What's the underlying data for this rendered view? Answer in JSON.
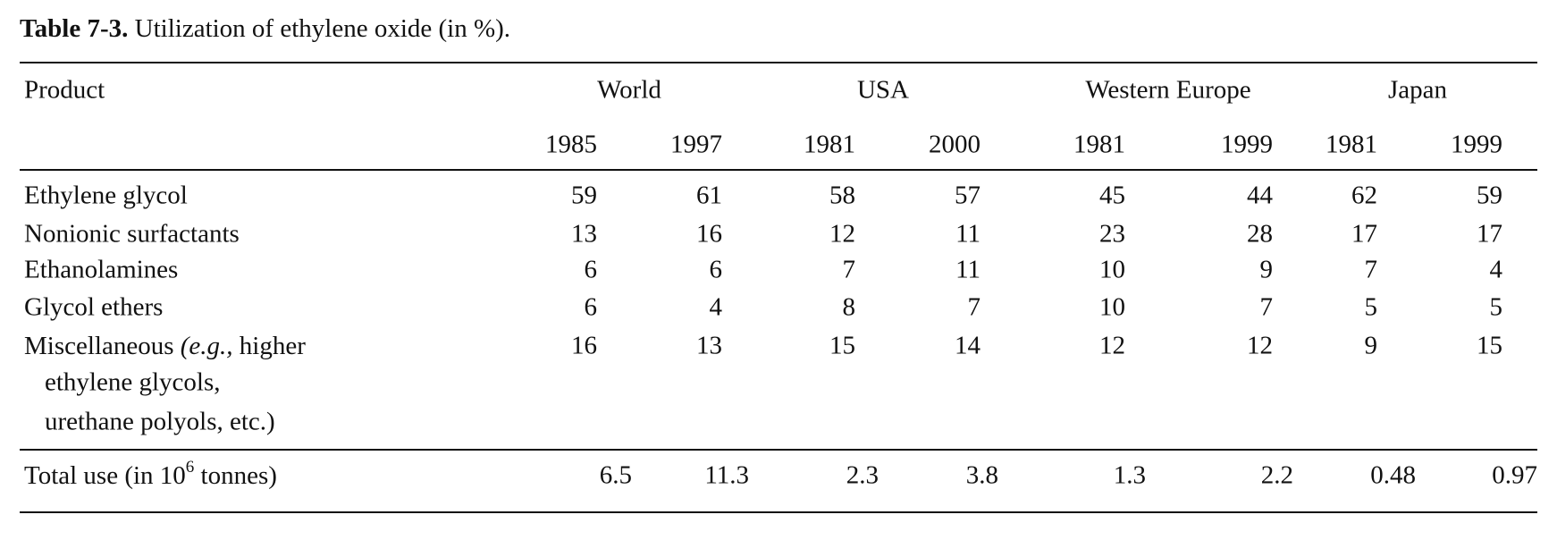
{
  "title": {
    "label": "Table 7-3.",
    "text": " Utilization of ethylene oxide (in %)."
  },
  "header": {
    "product": "Product",
    "groups": [
      "World",
      "USA",
      "Western Europe",
      "Japan"
    ],
    "years": [
      "1985",
      "1997",
      "1981",
      "2000",
      "1981",
      "1999",
      "1981",
      "1999"
    ]
  },
  "rows": [
    {
      "label": "Ethylene glycol",
      "values": [
        59,
        61,
        58,
        57,
        45,
        44,
        62,
        59
      ]
    },
    {
      "label": "Nonionic surfactants",
      "values": [
        13,
        16,
        12,
        11,
        23,
        28,
        17,
        17
      ]
    },
    {
      "label": "Ethanolamines",
      "values": [
        6,
        6,
        7,
        11,
        10,
        9,
        7,
        4
      ]
    },
    {
      "label": "Glycol ethers",
      "values": [
        6,
        4,
        8,
        7,
        10,
        7,
        5,
        5
      ]
    },
    {
      "label": [
        "Miscellaneous ",
        "(e.g.,",
        " higher"
      ],
      "continuation": [
        "ethylene glycols,",
        "urethane polyols, etc.)"
      ],
      "values": [
        16,
        13,
        15,
        14,
        12,
        12,
        9,
        15
      ]
    }
  ],
  "total": {
    "label": [
      "Total use (in 10",
      "6",
      " tonnes)"
    ],
    "values": [
      "6.5",
      "11.3",
      "2.3",
      "3.8",
      "1.3",
      "2.2",
      "0.48",
      "0.97"
    ]
  }
}
